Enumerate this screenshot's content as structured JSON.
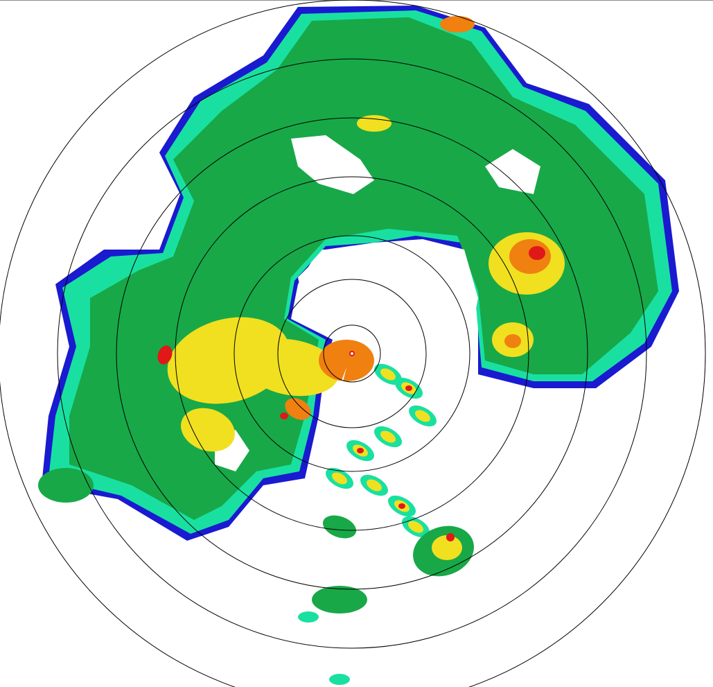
{
  "radar": {
    "range_rings": 7,
    "colors": {
      "weak": "#1a1ad0",
      "light": "#19e0a0",
      "moderate": "#18a848",
      "heavy": "#f0e020",
      "intense": "#f08010",
      "extreme": "#e01818",
      "ring": "#000000",
      "background": "#ffffff"
    }
  }
}
